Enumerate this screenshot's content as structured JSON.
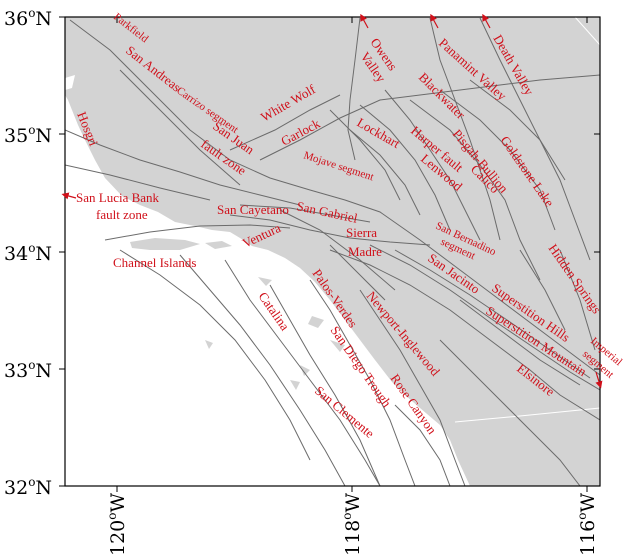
{
  "map": {
    "lat_labels": {
      "l36": {
        "main": "36",
        "sup": "o",
        "hemi": "N"
      },
      "l35": {
        "main": "35",
        "sup": "o",
        "hemi": "N"
      },
      "l34": {
        "main": "34",
        "sup": "o",
        "hemi": "N"
      },
      "l33": {
        "main": "33",
        "sup": "o",
        "hemi": "N"
      },
      "l32": {
        "main": "32",
        "sup": "o",
        "hemi": "N"
      }
    },
    "lon_labels": {
      "w120": {
        "main": "120",
        "sup": "o",
        "hemi": "W"
      },
      "w118": {
        "main": "118",
        "sup": "o",
        "hemi": "W"
      },
      "w116": {
        "main": "116",
        "sup": "o",
        "hemi": "W"
      }
    },
    "faults": {
      "parkfield": "Parkfield",
      "san_andreas": "San Andreas",
      "carrizo": "Carrizo segment",
      "hosgri": "Hosgri",
      "san_juan_1": "San Juan",
      "san_juan_2": "fault zone",
      "white_wolf": "White Wolf",
      "garlock": "Garlock",
      "owens": "Owens",
      "valley_owens": "Valley",
      "panamint": "Panamint Valley",
      "death_valley": "Death Valley",
      "blackwater": "Blackwater",
      "lockhart": "Lockhart",
      "harper": "Harper fault",
      "pisgah": "Pisgah-Bullion",
      "goldstone": "Goldstone Lake",
      "calico": "Calico",
      "lenwood": "Lenwood",
      "mojave": "Mojave segment",
      "slb_1": "San Lucia Bank",
      "slb_2": "fault zone",
      "san_cayetano": "San Cayetano",
      "san_gabriel": "San Gabriel",
      "sierra": "Sierra",
      "madre": "Madre",
      "ventura": "Ventura",
      "sb_1": "San Bernadino",
      "sb_2": "segment",
      "hidden_springs": "Hidden Springs",
      "channel_islands": "Channel Islands",
      "san_jacinto": "San Jacinto",
      "superstition_hills": "Superstition Hills",
      "superstition_mountain": "Superstition Mountain",
      "imperial_1": "Imperial",
      "imperial_2": "segment",
      "catalina": "Catalina",
      "palos_verdes": "Palos-Verdes",
      "newport": "Newport-Inglewood",
      "san_diego": "San Diego Trough",
      "rose_canyon": "Rose Canyon",
      "elsinore": "Elsinore",
      "san_clemente": "San Clemente"
    },
    "colors": {
      "land": "#d3d3d3",
      "water": "#ffffff",
      "fault_line": "#6b6b6b",
      "label": "#d0101a"
    }
  }
}
